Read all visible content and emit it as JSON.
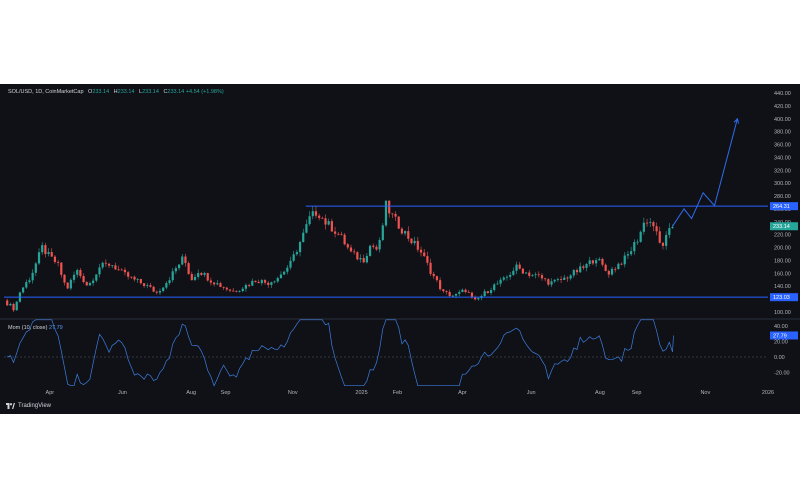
{
  "header": {
    "symbol": "SOL/USD, 1D, CoinMarketCap",
    "open_label": "O",
    "open": "233.14",
    "high_label": "H",
    "high": "233.14",
    "low_label": "L",
    "low": "233.14",
    "close_label": "C",
    "close": "233.14",
    "change": "+4.54 (+1.98%)"
  },
  "momentum_header": {
    "label": "Mom (10, close)",
    "value": "27.79"
  },
  "brand": "TradingView",
  "colors": {
    "background": "#0f1117",
    "up": "#26a69a",
    "down": "#ef5350",
    "line": "#2962ff",
    "momentum": "#3d7ee0",
    "text": "#b2b5be"
  },
  "chart_data": [
    {
      "type": "candlestick",
      "series": [
        {
          "name": "SOL/USD, 1D, CoinMarketCap"
        }
      ],
      "ylim": [
        100,
        440
      ],
      "yticks": [
        "440.00",
        "420.00",
        "400.00",
        "380.00",
        "360.00",
        "340.00",
        "320.00",
        "300.00",
        "280.00",
        "260.00",
        "240.00",
        "220.00",
        "200.00",
        "180.00",
        "160.00",
        "140.00",
        "120.00",
        "100.00"
      ],
      "xticks": [
        "Apr",
        "Jun",
        "Aug",
        "Sep",
        "Nov",
        "2025",
        "Feb",
        "Apr",
        "Jun",
        "Aug",
        "Sep",
        "Nov",
        "2026"
      ],
      "horizontal_lines": [
        {
          "label": "264.31",
          "value": 264.31
        },
        {
          "label": "123.03",
          "value": 123.03
        }
      ],
      "last_price": {
        "label": "233.14",
        "value": 233.14
      },
      "price_path": [
        {
          "x": 0.0,
          "y": 118
        },
        {
          "x": 0.014,
          "y": 104
        },
        {
          "x": 0.02,
          "y": 130
        },
        {
          "x": 0.035,
          "y": 155
        },
        {
          "x": 0.05,
          "y": 200
        },
        {
          "x": 0.06,
          "y": 185
        },
        {
          "x": 0.07,
          "y": 175
        },
        {
          "x": 0.082,
          "y": 135
        },
        {
          "x": 0.095,
          "y": 165
        },
        {
          "x": 0.11,
          "y": 140
        },
        {
          "x": 0.125,
          "y": 170
        },
        {
          "x": 0.14,
          "y": 175
        },
        {
          "x": 0.155,
          "y": 160
        },
        {
          "x": 0.17,
          "y": 150
        },
        {
          "x": 0.185,
          "y": 142
        },
        {
          "x": 0.2,
          "y": 130
        },
        {
          "x": 0.215,
          "y": 150
        },
        {
          "x": 0.235,
          "y": 185
        },
        {
          "x": 0.245,
          "y": 150
        },
        {
          "x": 0.255,
          "y": 165
        },
        {
          "x": 0.27,
          "y": 150
        },
        {
          "x": 0.285,
          "y": 140
        },
        {
          "x": 0.3,
          "y": 132
        },
        {
          "x": 0.315,
          "y": 140
        },
        {
          "x": 0.33,
          "y": 150
        },
        {
          "x": 0.345,
          "y": 145
        },
        {
          "x": 0.36,
          "y": 155
        },
        {
          "x": 0.375,
          "y": 175
        },
        {
          "x": 0.39,
          "y": 215
        },
        {
          "x": 0.4,
          "y": 245
        },
        {
          "x": 0.41,
          "y": 257
        },
        {
          "x": 0.42,
          "y": 240
        },
        {
          "x": 0.43,
          "y": 230
        },
        {
          "x": 0.44,
          "y": 218
        },
        {
          "x": 0.455,
          "y": 190
        },
        {
          "x": 0.47,
          "y": 180
        },
        {
          "x": 0.48,
          "y": 205
        },
        {
          "x": 0.49,
          "y": 195
        },
        {
          "x": 0.5,
          "y": 265
        },
        {
          "x": 0.51,
          "y": 245
        },
        {
          "x": 0.52,
          "y": 230
        },
        {
          "x": 0.53,
          "y": 215
        },
        {
          "x": 0.545,
          "y": 195
        },
        {
          "x": 0.56,
          "y": 160
        },
        {
          "x": 0.575,
          "y": 130
        },
        {
          "x": 0.59,
          "y": 125
        },
        {
          "x": 0.605,
          "y": 135
        },
        {
          "x": 0.615,
          "y": 115
        },
        {
          "x": 0.625,
          "y": 125
        },
        {
          "x": 0.64,
          "y": 140
        },
        {
          "x": 0.655,
          "y": 150
        },
        {
          "x": 0.67,
          "y": 170
        },
        {
          "x": 0.685,
          "y": 160
        },
        {
          "x": 0.7,
          "y": 155
        },
        {
          "x": 0.715,
          "y": 145
        },
        {
          "x": 0.73,
          "y": 150
        },
        {
          "x": 0.745,
          "y": 160
        },
        {
          "x": 0.76,
          "y": 170
        },
        {
          "x": 0.775,
          "y": 185
        },
        {
          "x": 0.79,
          "y": 160
        },
        {
          "x": 0.8,
          "y": 170
        },
        {
          "x": 0.815,
          "y": 185
        },
        {
          "x": 0.83,
          "y": 215
        },
        {
          "x": 0.84,
          "y": 245
        },
        {
          "x": 0.85,
          "y": 235
        },
        {
          "x": 0.86,
          "y": 200
        },
        {
          "x": 0.875,
          "y": 233
        }
      ],
      "projection_path": [
        {
          "x": 0.875,
          "y": 233
        },
        {
          "x": 0.89,
          "y": 260
        },
        {
          "x": 0.9,
          "y": 245
        },
        {
          "x": 0.915,
          "y": 285
        },
        {
          "x": 0.93,
          "y": 265
        },
        {
          "x": 0.96,
          "y": 400
        }
      ]
    },
    {
      "type": "line",
      "series": [
        {
          "name": "Mom (10, close)"
        }
      ],
      "ylim": [
        -40,
        40
      ],
      "yticks": [
        "40.00",
        "20.00",
        "0.00",
        "-20.00"
      ],
      "current": {
        "label": "27.79",
        "value": 27.79
      }
    }
  ]
}
